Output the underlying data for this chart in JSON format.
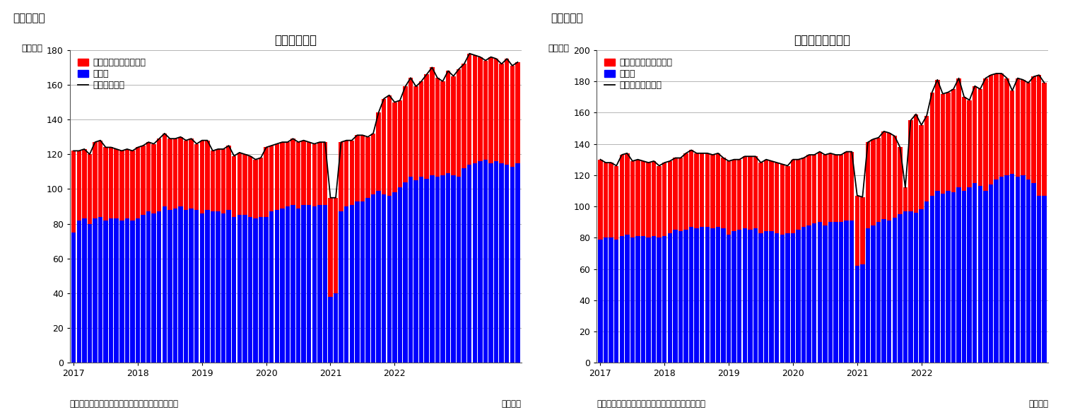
{
  "chart1": {
    "title": "住宅着工件数",
    "ylabel": "（万件）",
    "ylim": [
      0,
      180
    ],
    "yticks": [
      0,
      20,
      40,
      60,
      80,
      100,
      120,
      140,
      160,
      180
    ],
    "legend_line": "住宅着工件数",
    "legend_red": "集合住宅（二戸以上）",
    "legend_blue": "戸建て",
    "source": "（資料）センサス局よりニッセイ基礎研究所作成",
    "monthly_label": "（月次）",
    "blue": [
      75,
      82,
      83,
      80,
      83,
      84,
      82,
      83,
      83,
      82,
      83,
      82,
      83,
      85,
      87,
      86,
      87,
      90,
      88,
      89,
      90,
      88,
      89,
      88,
      86,
      88,
      87,
      87,
      86,
      88,
      84,
      85,
      85,
      84,
      83,
      84,
      84,
      87,
      88,
      89,
      90,
      91,
      89,
      91,
      91,
      90,
      91,
      91,
      38,
      40,
      87,
      90,
      91,
      93,
      93,
      95,
      97,
      99,
      97,
      96,
      98,
      101,
      104,
      107,
      105,
      107,
      106,
      108,
      107,
      108,
      109,
      108,
      107,
      112,
      114,
      115,
      116,
      117,
      115,
      116,
      115,
      114,
      113,
      115
    ],
    "red": [
      47,
      40,
      40,
      40,
      44,
      44,
      42,
      41,
      40,
      40,
      40,
      40,
      41,
      40,
      40,
      40,
      42,
      42,
      41,
      40,
      40,
      40,
      40,
      38,
      42,
      40,
      35,
      36,
      37,
      37,
      35,
      36,
      35,
      35,
      34,
      34,
      40,
      38,
      38,
      38,
      37,
      38,
      38,
      37,
      36,
      36,
      36,
      36,
      57,
      55,
      40,
      38,
      37,
      38,
      38,
      35,
      35,
      45,
      55,
      58,
      52,
      50,
      55,
      57,
      54,
      55,
      60,
      62,
      57,
      54,
      59,
      57,
      62,
      60,
      64,
      62,
      60,
      57,
      61,
      59,
      57,
      61,
      58,
      58
    ],
    "xtick_labels": [
      "2017",
      "2018",
      "2019",
      "2020",
      "2021",
      "2022"
    ]
  },
  "chart2": {
    "title": "住宅着工許可件数",
    "ylabel": "（万件）",
    "ylim": [
      0,
      200
    ],
    "yticks": [
      0,
      20,
      40,
      60,
      80,
      100,
      120,
      140,
      160,
      180,
      200
    ],
    "legend_line": "住宅建築許可件数",
    "legend_red": "集合住宅（二戸以上）",
    "legend_blue": "戸建て",
    "source": "（資料）センサス局よりニッセイ基礎研究所作成",
    "monthly_label": "（月次）",
    "blue": [
      79,
      80,
      80,
      79,
      81,
      82,
      80,
      81,
      81,
      80,
      81,
      80,
      81,
      83,
      85,
      84,
      85,
      87,
      86,
      87,
      87,
      86,
      87,
      86,
      82,
      84,
      85,
      86,
      85,
      86,
      83,
      84,
      84,
      83,
      82,
      83,
      83,
      85,
      87,
      88,
      89,
      90,
      88,
      90,
      90,
      90,
      91,
      91,
      62,
      63,
      86,
      88,
      90,
      92,
      91,
      93,
      95,
      97,
      97,
      96,
      98,
      103,
      107,
      110,
      108,
      110,
      109,
      112,
      110,
      112,
      115,
      113,
      110,
      114,
      117,
      119,
      120,
      121,
      119,
      120,
      117,
      115,
      107,
      107
    ],
    "red": [
      51,
      48,
      48,
      47,
      52,
      52,
      49,
      49,
      48,
      48,
      48,
      46,
      47,
      46,
      46,
      47,
      49,
      49,
      48,
      47,
      47,
      47,
      47,
      45,
      47,
      46,
      45,
      46,
      47,
      46,
      45,
      46,
      45,
      45,
      45,
      43,
      47,
      45,
      44,
      45,
      44,
      45,
      45,
      44,
      43,
      43,
      44,
      44,
      45,
      43,
      55,
      55,
      54,
      56,
      56,
      52,
      43,
      15,
      58,
      63,
      54,
      55,
      66,
      71,
      64,
      63,
      66,
      70,
      60,
      56,
      62,
      62,
      72,
      70,
      68,
      66,
      62,
      53,
      63,
      61,
      62,
      68,
      77,
      72
    ],
    "xtick_labels": [
      "2017",
      "2018",
      "2019",
      "2020",
      "2021",
      "2022"
    ]
  },
  "fig_label1": "（図表１）",
  "fig_label2": "（図表２）",
  "bar_width": 0.85,
  "bar_color_red": "#FF0000",
  "bar_color_blue": "#0000FF",
  "line_color": "#000000",
  "bg_color": "#FFFFFF",
  "grid_color": "#999999",
  "font_size_title": 12,
  "font_size_label": 9,
  "font_size_tick": 9,
  "font_size_legend": 9,
  "font_size_fig_label": 11,
  "font_size_source": 8.5
}
